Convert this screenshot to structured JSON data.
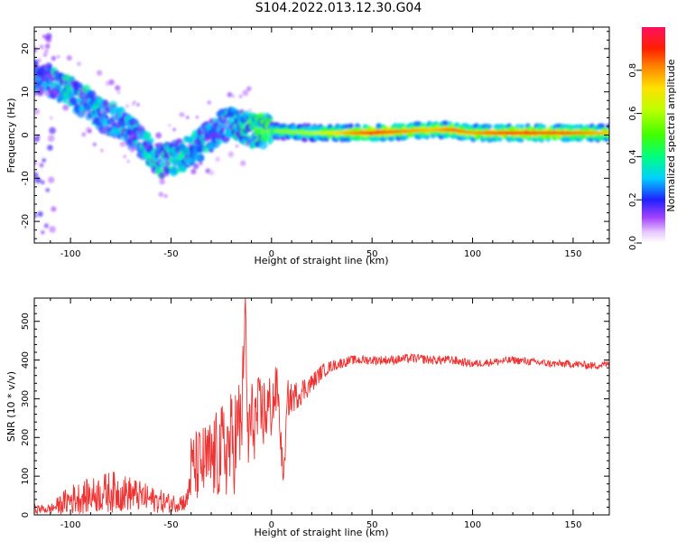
{
  "title": "S104.2022.013.12.30.G04",
  "chart_data": [
    {
      "type": "heatmap",
      "xlabel": "Height of straight line (km)",
      "ylabel": "Frequency (Hz)",
      "xlim": [
        -118,
        168
      ],
      "ylim": [
        -25,
        25
      ],
      "xticks": [
        -100,
        -50,
        0,
        50,
        100,
        150
      ],
      "yticks": [
        -20,
        -10,
        0,
        10,
        20
      ],
      "colorbar": {
        "label": "Normalized spectral amplitude",
        "range": [
          0,
          1
        ],
        "ticks": [
          0.0,
          0.2,
          0.4,
          0.6,
          0.8
        ]
      },
      "ridge": {
        "description_points_x": [
          -118,
          -100,
          -85,
          -70,
          -55,
          -45,
          -35,
          -25,
          -20,
          -10,
          0,
          20,
          50,
          80,
          90,
          100,
          120,
          150,
          168
        ],
        "frequency_hz": [
          14,
          10,
          5,
          1,
          -6,
          -5,
          -2,
          2,
          3,
          1,
          1,
          0.5,
          0.5,
          1.2,
          1.2,
          0.5,
          0.5,
          0.5,
          0.5
        ],
        "peak_amplitude": [
          0.25,
          0.35,
          0.3,
          0.3,
          0.35,
          0.35,
          0.3,
          0.3,
          0.35,
          0.4,
          0.5,
          0.55,
          0.85,
          0.7,
          0.8,
          0.75,
          0.85,
          0.8,
          0.7
        ]
      }
    },
    {
      "type": "line",
      "xlabel": "Height of straight line (km)",
      "ylabel": "SNR (10 * v/v)",
      "xlim": [
        -118,
        168
      ],
      "ylim": [
        0,
        560
      ],
      "xticks": [
        -100,
        -50,
        0,
        50,
        100,
        150
      ],
      "yticks": [
        0,
        100,
        200,
        300,
        400,
        500
      ],
      "color": "#ee3333",
      "x": [
        -118,
        -110,
        -100,
        -90,
        -80,
        -70,
        -60,
        -50,
        -42,
        -40,
        -30,
        -20,
        -15,
        -13,
        -12,
        -10,
        -5,
        0,
        3,
        5,
        6,
        8,
        10,
        15,
        20,
        25,
        30,
        40,
        50,
        60,
        70,
        80,
        90,
        100,
        110,
        120,
        130,
        140,
        150,
        160,
        168
      ],
      "y": [
        15,
        15,
        40,
        50,
        60,
        55,
        40,
        30,
        35,
        120,
        140,
        180,
        230,
        560,
        200,
        240,
        260,
        280,
        330,
        160,
        90,
        300,
        300,
        320,
        340,
        370,
        385,
        400,
        400,
        400,
        405,
        400,
        400,
        390,
        395,
        400,
        395,
        390,
        390,
        385,
        390
      ],
      "noise_amplitude": [
        12,
        12,
        40,
        45,
        55,
        45,
        35,
        25,
        25,
        90,
        110,
        140,
        150,
        0,
        150,
        110,
        100,
        90,
        60,
        40,
        20,
        50,
        40,
        35,
        25,
        20,
        15,
        12,
        12,
        12,
        12,
        12,
        12,
        10,
        10,
        10,
        10,
        10,
        10,
        10,
        10
      ]
    }
  ]
}
